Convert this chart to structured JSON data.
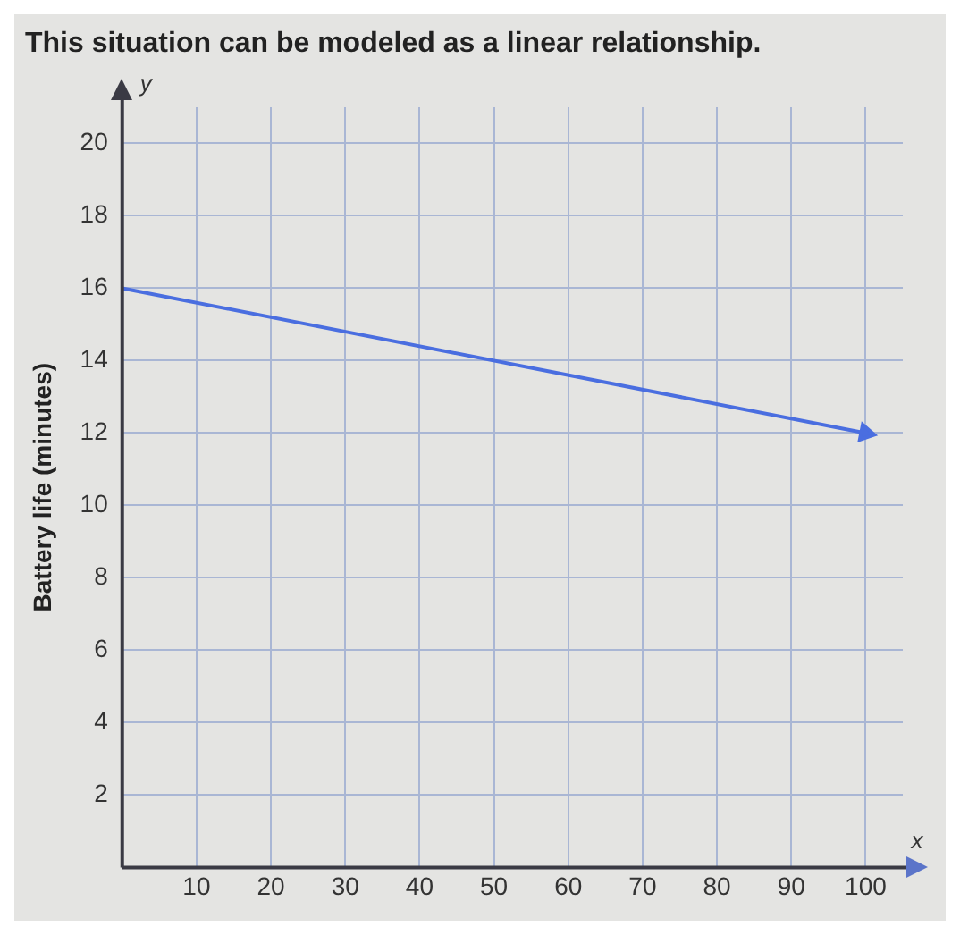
{
  "chart_data": {
    "type": "line",
    "title": "This situation can be modeled as a linear relationship.",
    "xlabel": "x",
    "ylabel": "Battery life (minutes)",
    "annotations": [
      "y"
    ],
    "x": [
      0,
      100
    ],
    "series": [
      {
        "color": "#4a6ee0",
        "values": [
          16,
          12
        ]
      }
    ],
    "xlim": [
      0,
      105
    ],
    "ylim": [
      0,
      21
    ],
    "xticks": [
      10,
      20,
      30,
      40,
      50,
      60,
      70,
      80,
      90,
      100
    ],
    "yticks": [
      2,
      4,
      6,
      8,
      10,
      12,
      14,
      16,
      18,
      20
    ],
    "grid": true,
    "legend": false,
    "line_style": "solid"
  }
}
